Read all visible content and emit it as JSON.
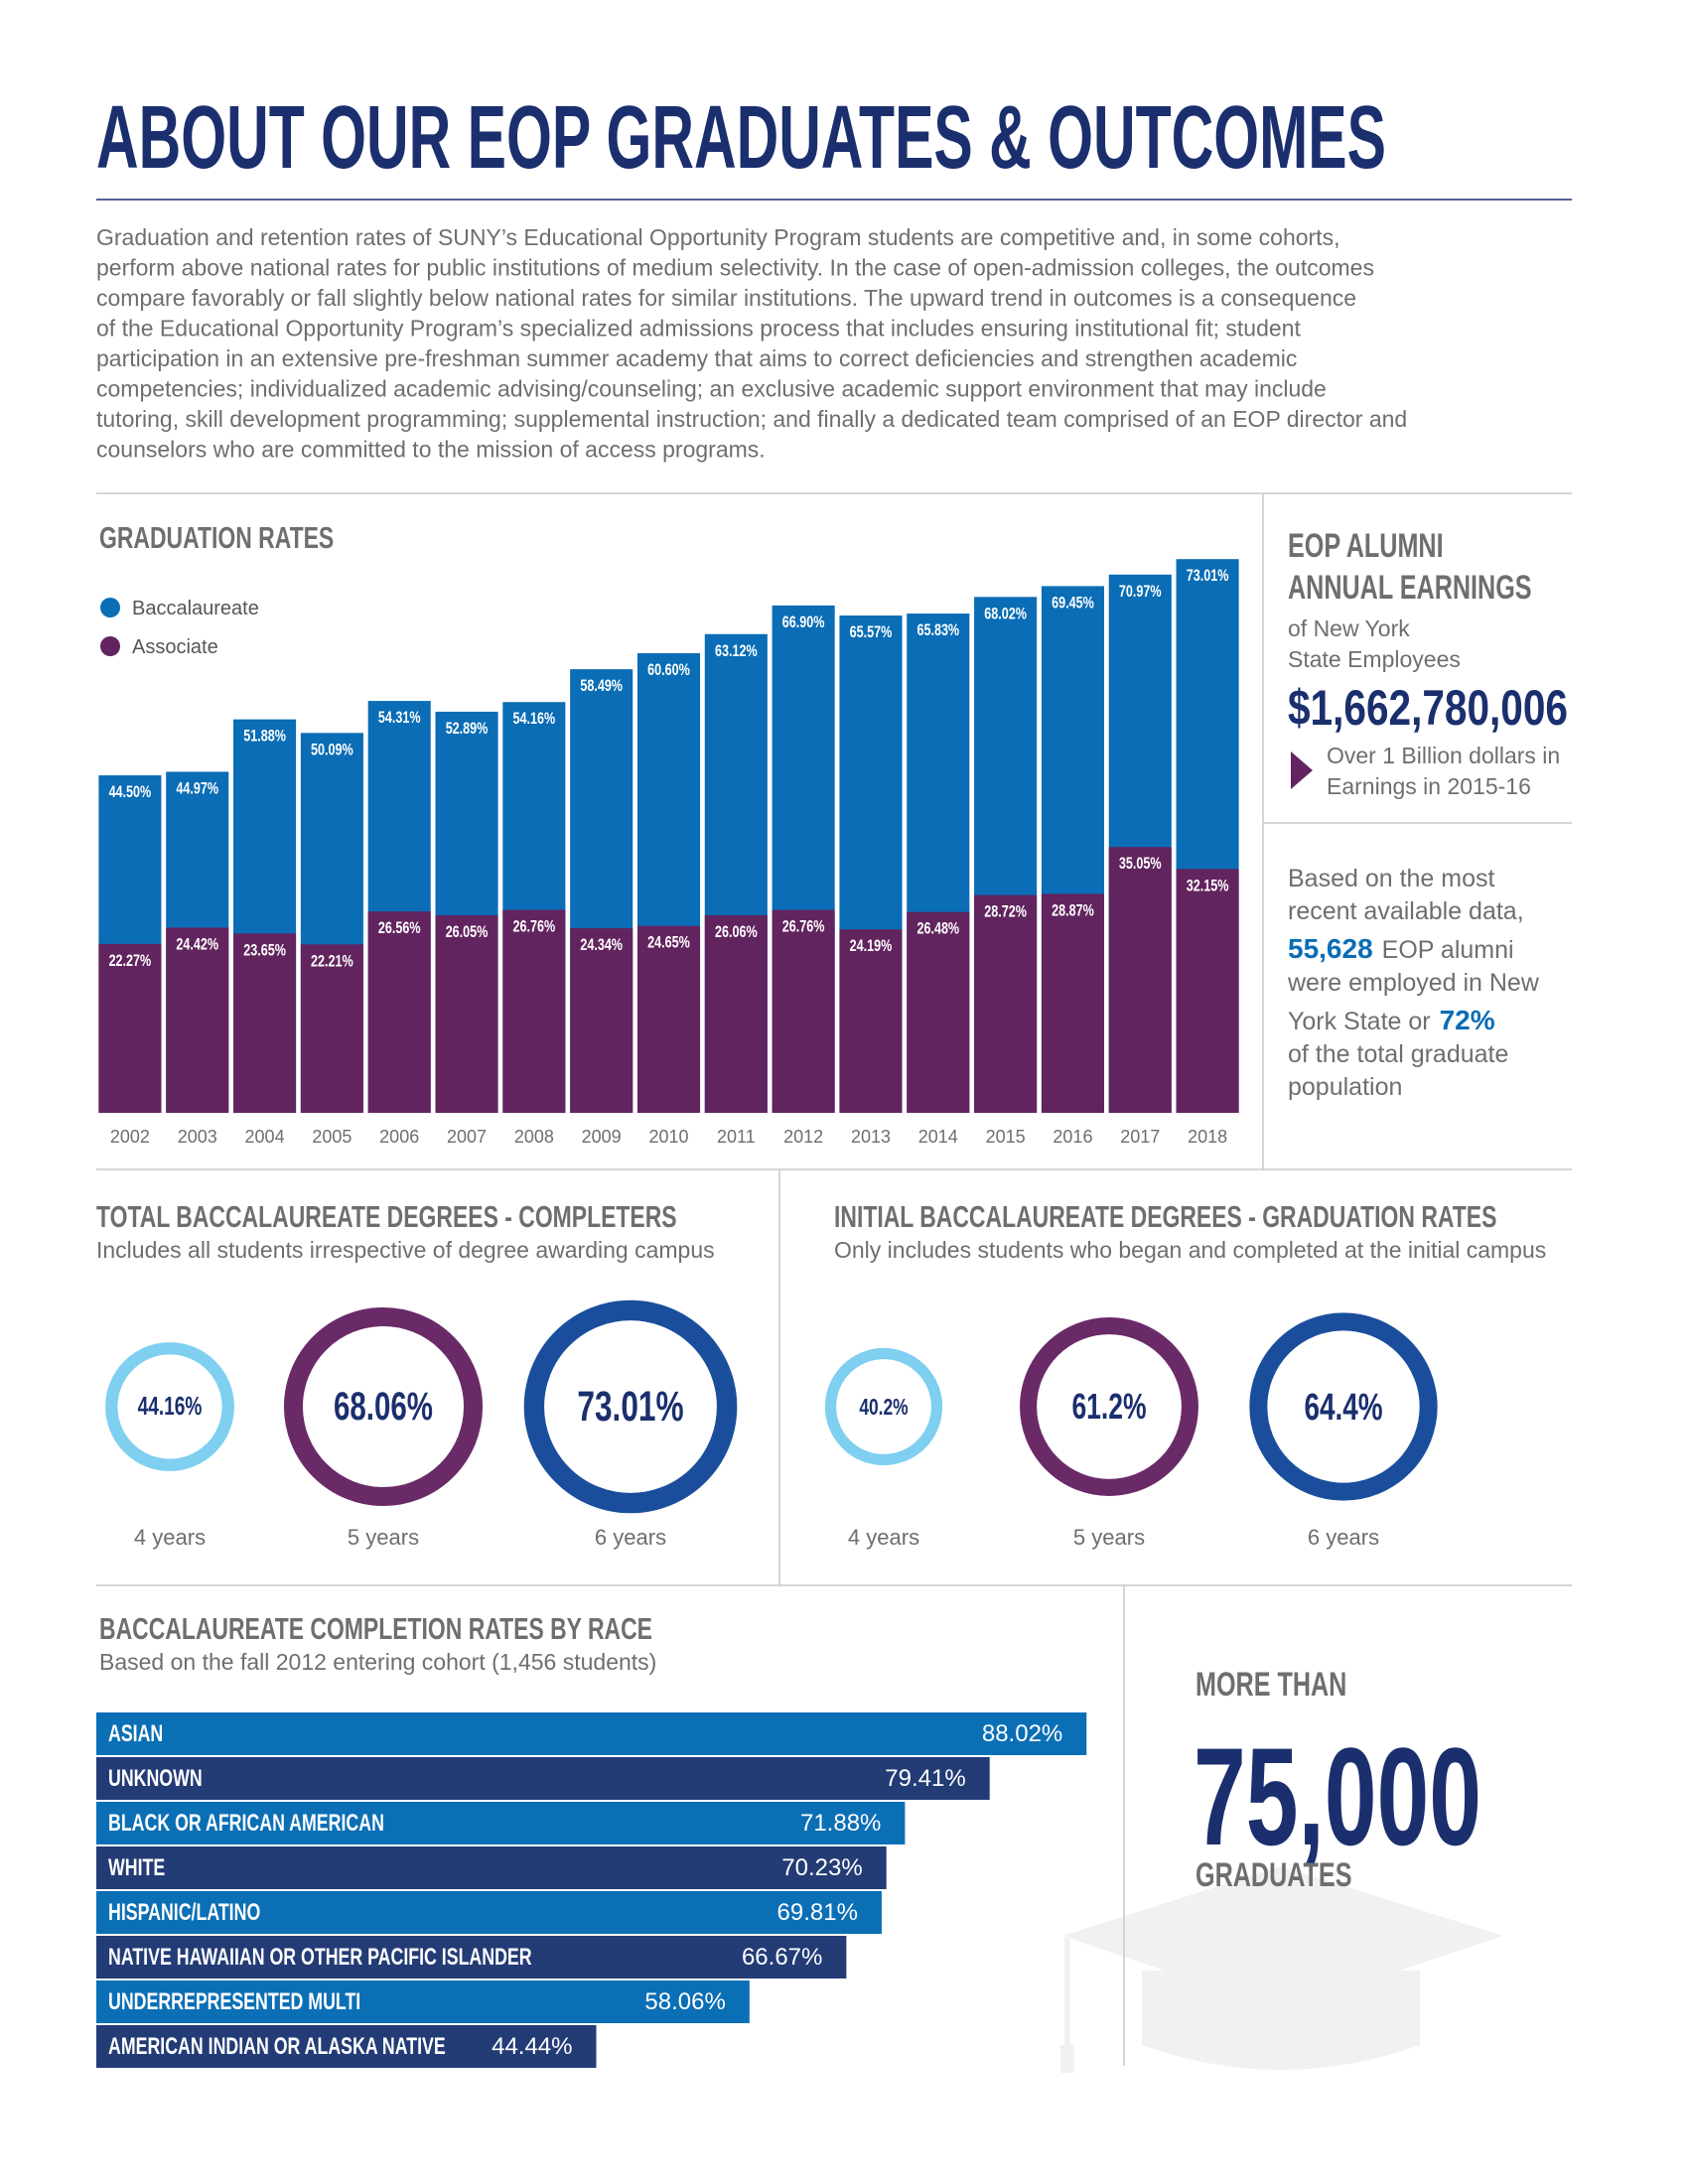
{
  "header": {
    "title": "ABOUT OUR EOP GRADUATES & OUTCOMES",
    "intro": [
      "Graduation and retention rates of SUNY’s Educational Opportunity Program students are competitive and, in some cohorts,",
      "perform above national rates for public institutions of medium selectivity. In the case of open-admission colleges, the outcomes",
      "compare favorably or fall slightly below national rates for similar institutions. The upward trend in outcomes is a consequence",
      "of the Educational Opportunity Program’s specialized admissions process that includes ensuring institutional fit; student",
      "participation in an extensive pre-freshman summer academy that aims to correct deficiencies and strengthen academic",
      "competencies; individualized academic advising/counseling; an exclusive academic support environment that may include",
      "tutoring, skill development programming; supplemental instruction; and finally a dedicated team comprised of an EOP director and",
      "counselors who are committed to the mission of access programs."
    ]
  },
  "earnings": {
    "title": [
      "EOP ALUMNI",
      "ANNUAL EARNINGS"
    ],
    "subtitle": [
      "of New York",
      "State Employees"
    ],
    "amount": "$1,662,780,006",
    "note": [
      "Over 1 Billion dollars in",
      "Earnings in 2015-16"
    ]
  },
  "employment": {
    "text1": [
      "Based on the most",
      "recent available data,"
    ],
    "alumni_count": "55,628",
    "text2": [
      "EOP alumni",
      "were employed in New",
      "York State or"
    ],
    "share": "72%",
    "text3": [
      "of the total graduate",
      "population"
    ]
  },
  "graduates": {
    "pre": "MORE THAN",
    "number": "75,000",
    "post": "GRADUATES"
  },
  "chart_data": [
    {
      "type": "bar",
      "title": "GRADUATION RATES",
      "categories": [
        "2002",
        "2003",
        "2004",
        "2005",
        "2006",
        "2007",
        "2008",
        "2009",
        "2010",
        "2011",
        "2012",
        "2013",
        "2014",
        "2015",
        "2016",
        "2017",
        "2018"
      ],
      "series": [
        {
          "name": "Baccalaureate",
          "color": "#0a6db5",
          "values": [
            44.5,
            44.97,
            51.88,
            50.09,
            54.31,
            52.89,
            54.16,
            58.49,
            60.6,
            63.12,
            66.9,
            65.57,
            65.83,
            68.02,
            69.45,
            70.97,
            73.01
          ],
          "value_labels": [
            "44.50%",
            "44.97%",
            "51.88%",
            "50.09%",
            "54.31%",
            "52.89%",
            "54.16%",
            "58.49%",
            "60.60%",
            "63.12%",
            "66.90%",
            "65.57%",
            "65.83%",
            "68.02%",
            "69.45%",
            "70.97%",
            "73.01%"
          ]
        },
        {
          "name": "Associate",
          "color": "#62245f",
          "values": [
            22.27,
            24.42,
            23.65,
            22.21,
            26.56,
            26.05,
            26.76,
            24.34,
            24.65,
            26.06,
            26.76,
            24.19,
            26.48,
            28.72,
            28.87,
            35.05,
            32.15
          ],
          "value_labels": [
            "22.27%",
            "24.42%",
            "23.65%",
            "22.21%",
            "26.56%",
            "26.05%",
            "26.76%",
            "24.34%",
            "24.65%",
            "26.06%",
            "26.76%",
            "24.19%",
            "26.48%",
            "28.72%",
            "28.87%",
            "35.05%",
            "32.15%"
          ]
        }
      ],
      "ylim": [
        0,
        75
      ]
    },
    {
      "type": "ring",
      "title": "TOTAL BACCALAUREATE DEGREES - COMPLETERS",
      "subtitle": "Includes all students irrespective of degree awarding campus",
      "categories": [
        "4 years",
        "5 years",
        "6 years"
      ],
      "values": [
        44.16,
        68.06,
        73.01
      ],
      "value_labels": [
        "44.16%",
        "68.06%",
        "73.01%"
      ],
      "colors": [
        "#7ecff0",
        "#6a2a68",
        "#1a4e9c"
      ]
    },
    {
      "type": "ring",
      "title": "INITIAL BACCALAUREATE DEGREES - GRADUATION RATES",
      "subtitle": "Only includes students who began and completed at the initial campus",
      "categories": [
        "4 years",
        "5 years",
        "6 years"
      ],
      "values": [
        40.2,
        61.2,
        64.4
      ],
      "value_labels": [
        "40.2%",
        "61.2%",
        "64.4%"
      ],
      "colors": [
        "#7ecff0",
        "#6a2a68",
        "#1a4e9c"
      ]
    },
    {
      "type": "hbar",
      "title": "BACCALAUREATE COMPLETION RATES BY RACE",
      "subtitle": "Based on the fall 2012 entering cohort (1,456 students)",
      "categories": [
        "ASIAN",
        "UNKNOWN",
        "BLACK OR AFRICAN AMERICAN",
        "WHITE",
        "HISPANIC/LATINO",
        "NATIVE HAWAIIAN OR OTHER PACIFIC ISLANDER",
        "UNDERREPRESENTED MULTI",
        "AMERICAN INDIAN OR ALASKA NATIVE"
      ],
      "values": [
        88.02,
        79.41,
        71.88,
        70.23,
        69.81,
        66.67,
        58.06,
        44.44
      ],
      "value_labels": [
        "88.02%",
        "79.41%",
        "71.88%",
        "70.23%",
        "69.81%",
        "66.67%",
        "58.06%",
        "44.44%"
      ],
      "colors": [
        "#0b6fb6",
        "#233c76",
        "#0b6fb6",
        "#233c76",
        "#0b6fb6",
        "#233c76",
        "#0b6fb6",
        "#233c76"
      ],
      "xlim": [
        0,
        100
      ]
    }
  ]
}
